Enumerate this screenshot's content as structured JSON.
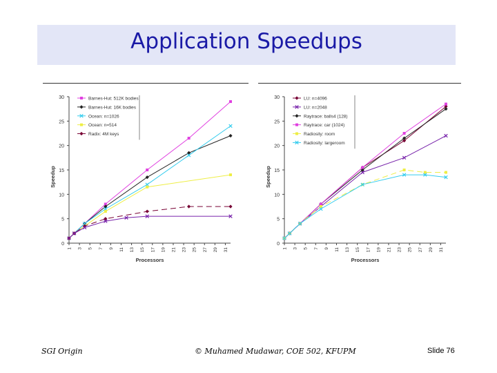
{
  "slide": {
    "title": "Application Speedups",
    "footer_left": "SGI Origin",
    "footer_center": "© Muhamed Mudawar, COE 502, KFUPM",
    "footer_right": "Slide 76"
  },
  "colors": {
    "title": "#1a1aa6",
    "band": "#e3e6f7"
  },
  "chart_data": [
    {
      "type": "line",
      "xlabel": "Processors",
      "ylabel": "Speedup",
      "ylim": [
        0,
        30
      ],
      "yticks": [
        0,
        5,
        10,
        15,
        20,
        25,
        30
      ],
      "xticks": [
        1,
        3,
        5,
        7,
        9,
        11,
        13,
        15,
        17,
        19,
        21,
        23,
        25,
        27,
        29,
        31
      ],
      "legend_position": "top-left",
      "series": [
        {
          "name": "Barnes-Hut: 512K bodies",
          "color": "#e040e0",
          "marker": "square",
          "dash": "solid",
          "x": [
            1,
            2,
            4,
            8,
            16,
            24,
            32
          ],
          "y": [
            1,
            2,
            4,
            8,
            15,
            21.5,
            29
          ]
        },
        {
          "name": "Barnes-Hut: 16K bodies",
          "color": "#222222",
          "marker": "diamond",
          "dash": "solid",
          "x": [
            1,
            2,
            4,
            8,
            16,
            24,
            32
          ],
          "y": [
            1,
            2,
            4,
            7.5,
            13.5,
            18.5,
            22
          ]
        },
        {
          "name": "Ocean: n=1026",
          "color": "#33ccee",
          "marker": "x",
          "dash": "solid",
          "x": [
            1,
            2,
            4,
            8,
            16,
            24,
            32
          ],
          "y": [
            1,
            2,
            4,
            7,
            12,
            18,
            24
          ]
        },
        {
          "name": "Ocean: n=514",
          "color": "#eeee44",
          "marker": "square",
          "dash": "solid",
          "x": [
            1,
            2,
            4,
            8,
            16,
            32
          ],
          "y": [
            1,
            2,
            3.5,
            6.5,
            11.5,
            14
          ]
        },
        {
          "name": "Radix: 4M keys",
          "color": "#770033",
          "marker": "diamond",
          "dash": "dashed",
          "x": [
            1,
            2,
            4,
            8,
            16,
            24,
            32
          ],
          "y": [
            1,
            2,
            3.5,
            5,
            6.5,
            7.5,
            7.5
          ]
        },
        {
          "name": "",
          "color": "#7722aa",
          "marker": "x",
          "dash": "solid",
          "x": [
            1,
            2,
            4,
            8,
            12,
            16,
            32
          ],
          "y": [
            1,
            2,
            3.2,
            4.5,
            5.2,
            5.5,
            5.5
          ]
        }
      ]
    },
    {
      "type": "line",
      "xlabel": "Processors",
      "ylabel": "Speedup",
      "ylim": [
        0,
        30
      ],
      "yticks": [
        0,
        5,
        10,
        15,
        20,
        25,
        30
      ],
      "xticks": [
        1,
        3,
        5,
        7,
        9,
        11,
        13,
        15,
        17,
        19,
        21,
        23,
        25,
        27,
        29,
        31
      ],
      "legend_position": "top-left",
      "series": [
        {
          "name": "LU: n=4096",
          "color": "#770033",
          "marker": "diamond",
          "dash": "solid",
          "x": [
            1,
            2,
            4,
            8,
            16,
            24,
            32
          ],
          "y": [
            1,
            2,
            4,
            8,
            15.5,
            21,
            28
          ]
        },
        {
          "name": "LU: n=2048",
          "color": "#7722aa",
          "marker": "x",
          "dash": "solid",
          "x": [
            1,
            2,
            4,
            8,
            16,
            24,
            32
          ],
          "y": [
            1,
            2,
            4,
            7.5,
            14.5,
            17.5,
            22
          ]
        },
        {
          "name": "Raytrace: balls4 (128)",
          "color": "#222222",
          "marker": "diamond",
          "dash": "solid",
          "x": [
            1,
            2,
            4,
            8,
            16,
            24,
            32
          ],
          "y": [
            1,
            2,
            4,
            8,
            15,
            21.5,
            27.5
          ]
        },
        {
          "name": "Raytrace: car (1024)",
          "color": "#e040e0",
          "marker": "square",
          "dash": "solid",
          "x": [
            1,
            2,
            4,
            8,
            16,
            24,
            32
          ],
          "y": [
            1,
            2,
            4,
            8,
            15.5,
            22.5,
            28.5
          ]
        },
        {
          "name": "Radiosity: room",
          "color": "#eeee44",
          "marker": "square",
          "dash": "dashed",
          "x": [
            1,
            2,
            4,
            8,
            16,
            24,
            28,
            32
          ],
          "y": [
            1,
            2,
            4,
            7.5,
            12,
            15,
            14.5,
            14.5
          ]
        },
        {
          "name": "Radiosity: largeroom",
          "color": "#33ccee",
          "marker": "x",
          "dash": "solid",
          "x": [
            1,
            2,
            4,
            8,
            16,
            24,
            28,
            32
          ],
          "y": [
            1,
            2,
            4,
            7,
            12,
            14,
            14,
            13.5
          ]
        }
      ]
    }
  ]
}
